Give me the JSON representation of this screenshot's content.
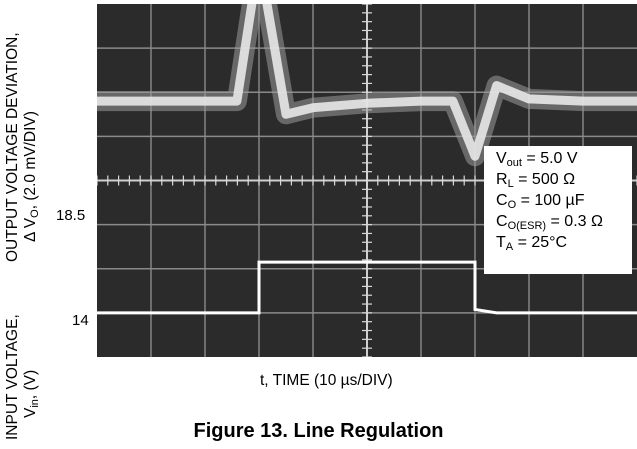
{
  "chart_data": {
    "type": "line",
    "title": "Figure 13. Line Regulation",
    "xlabel": "t, TIME (10 µs/DIV)",
    "ylabel_top": {
      "line1": "OUTPUT VOLTAGE DEVIATION,",
      "symbol": "Δ V",
      "sub": "O",
      "rest": ", (2.0 mV/DIV)"
    },
    "ylabel_bottom": {
      "line1": "INPUT VOLTAGE,",
      "symbol": "V",
      "sub": "in",
      "rest": ", (V)"
    },
    "y_ticks_input": [
      "18.5",
      "14"
    ],
    "grid": true,
    "x_divisions": 10,
    "y_divisions": 8,
    "x": [
      0,
      10,
      20,
      25.9,
      30,
      35,
      40,
      50,
      60,
      65.9,
      70,
      74,
      80,
      90,
      100
    ],
    "series": [
      {
        "trace": "output",
        "values": [
          0,
          0,
          0,
          0,
          6.5,
          -0.6,
          -0.3,
          -0.1,
          0,
          0,
          -2.5,
          0.7,
          0.1,
          0,
          0
        ]
      },
      {
        "trace": "input",
        "values": [
          14,
          14,
          14,
          14,
          18.5,
          18.5,
          18.5,
          18.5,
          18.5,
          18.5,
          14.3,
          14,
          14,
          14,
          14
        ]
      }
    ],
    "conditions": [
      {
        "base": "V",
        "sub": "out",
        "rest": " = 5.0 V"
      },
      {
        "base": "R",
        "sub": "L",
        "rest": " = 500 Ω"
      },
      {
        "base": "C",
        "sub": "O",
        "rest": " = 100 µF"
      },
      {
        "base": "C",
        "sub": "O(ESR)",
        "rest": " = 0.3 Ω"
      },
      {
        "base": "T",
        "sub": "A",
        "rest": " = 25°C"
      }
    ]
  }
}
